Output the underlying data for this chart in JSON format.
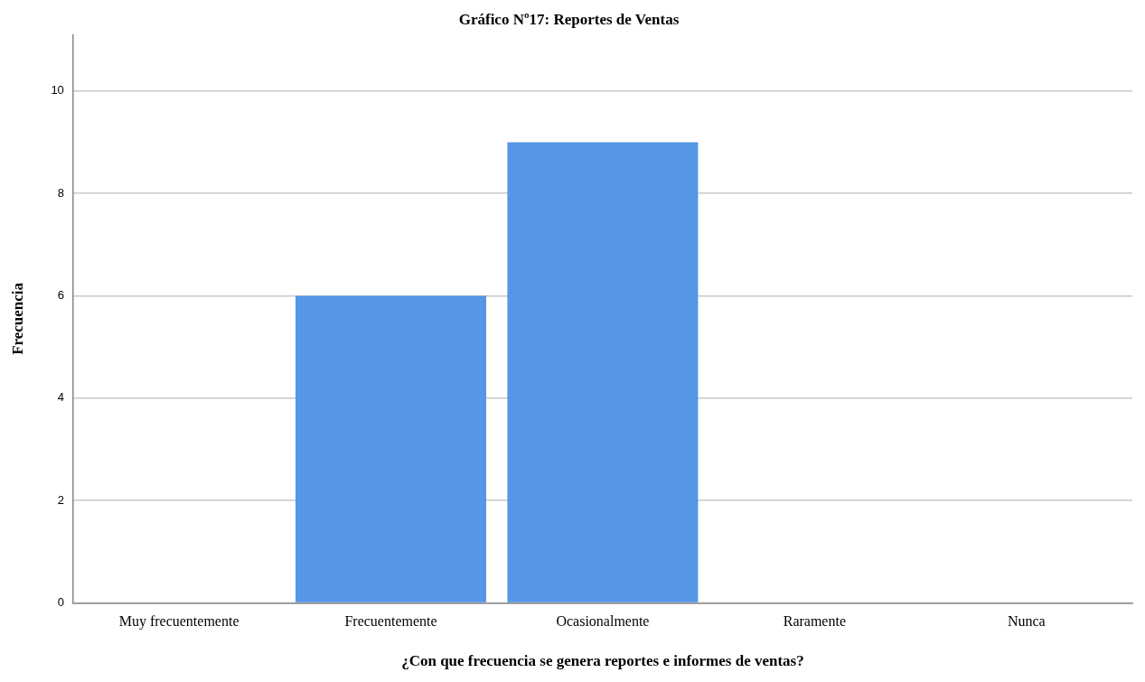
{
  "chart_data": {
    "type": "bar",
    "title": "Gráfico Nº17: Reportes de Ventas",
    "xlabel": "¿Con que frecuencia se genera reportes e informes de ventas?",
    "ylabel": "Frecuencia",
    "categories": [
      "Muy frecuentemente",
      "Frecuentemente",
      "Ocasionalmente",
      "Raramente",
      "Nunca"
    ],
    "values": [
      0,
      6,
      9,
      0,
      0
    ],
    "color": "#5596e6",
    "ylim": [
      0,
      11.1
    ],
    "yticks": [
      0,
      2,
      4,
      6,
      8,
      10
    ],
    "grid": "y"
  }
}
